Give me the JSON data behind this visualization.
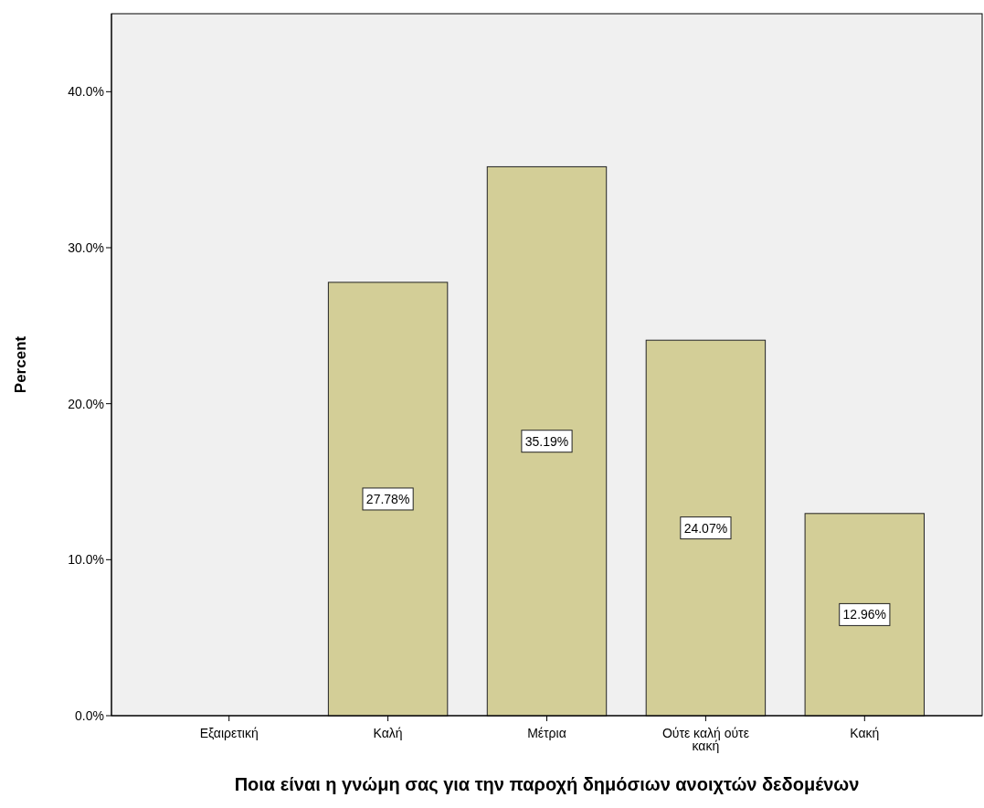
{
  "chart_data": {
    "type": "bar",
    "xlabel": "Ποια είναι η γνώμη σας για την παροχή δημόσιων ανοιχτών δεδομένων",
    "ylabel": "Percent",
    "categories": [
      "Εξαιρετική",
      "Καλή",
      "Μέτρια",
      "Ούτε καλή ούτε κακή",
      "Κακή"
    ],
    "values": [
      0,
      27.78,
      35.19,
      24.07,
      12.96
    ],
    "value_labels": [
      null,
      "27.78%",
      "35.19%",
      "24.07%",
      "12.96%"
    ],
    "color": "#d3ce97",
    "ylim": [
      0,
      45
    ],
    "yticks": [
      {
        "value": 0,
        "label": "0.0%"
      },
      {
        "value": 10,
        "label": "10.0%"
      },
      {
        "value": 20,
        "label": "20.0%"
      },
      {
        "value": 30,
        "label": "30.0%"
      },
      {
        "value": 40,
        "label": "40.0%"
      }
    ],
    "grid": false
  }
}
